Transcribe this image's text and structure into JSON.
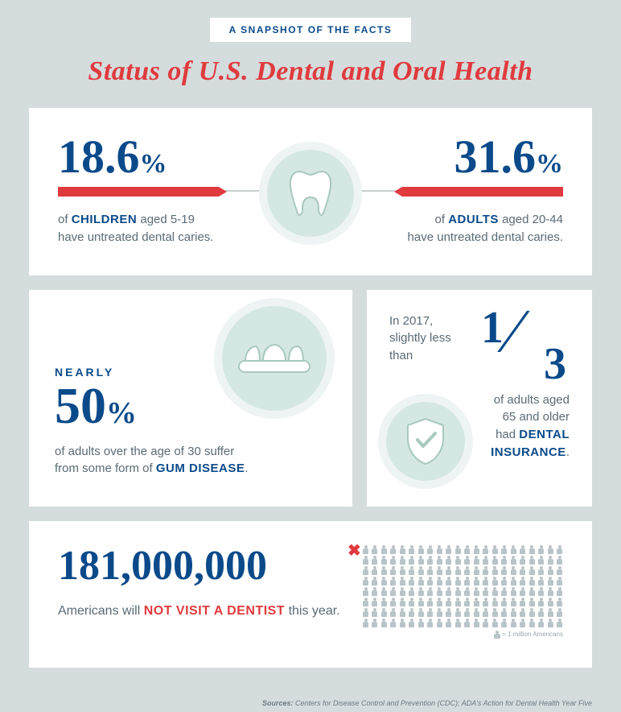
{
  "pill": "A SNAPSHOT OF THE FACTS",
  "title": "Status of U.S. Dental and Oral Health",
  "colors": {
    "bg": "#d5dcdd",
    "navy": "#0a4a8a",
    "red": "#e03a3e",
    "teal_light": "#d5e7e2",
    "teal_ring": "#eef4f3",
    "body_text": "#5a6b75",
    "people_gray": "#b8c4c7"
  },
  "card1": {
    "left": {
      "value": "18.6",
      "pct": "%",
      "desc_pre": "of ",
      "desc_hl": "CHILDREN",
      "desc_mid": " aged 5-19",
      "desc_post": "have untreated dental caries."
    },
    "right": {
      "value": "31.6",
      "pct": "%",
      "desc_pre": "of ",
      "desc_hl": "ADULTS",
      "desc_mid": " aged 20-44",
      "desc_post": "have untreated dental caries."
    }
  },
  "card2a": {
    "nearly": "NEARLY",
    "value": "50",
    "pct": "%",
    "desc_line1": "of adults over the age of 30 suffer",
    "desc_line2_pre": "from some form of ",
    "desc_line2_hl": "GUM DISEASE",
    "desc_line2_post": "."
  },
  "card2b": {
    "intro_line1": "In 2017,",
    "intro_line2": "slightly less than",
    "frac_num": "1",
    "frac_den": "3",
    "desc_line1": "of adults aged",
    "desc_line2": "65 and older",
    "desc_line3_pre": "had ",
    "desc_line3_hl": "DENTAL",
    "desc_line4_hl": "INSURANCE",
    "desc_line4_post": "."
  },
  "card3": {
    "value": "181,000,000",
    "desc_pre": "Americans will ",
    "desc_hl": "NOT VISIT A DENTIST",
    "desc_post": " this year.",
    "legend": "= 1 million Americans",
    "grid": {
      "rows": 8,
      "cols": 22,
      "last_row_count": 27
    }
  },
  "sources": {
    "label": "Sources:",
    "text": " Centers for Disease Control and Prevention (CDC); ADA's Action for Dental Health Year Five"
  }
}
